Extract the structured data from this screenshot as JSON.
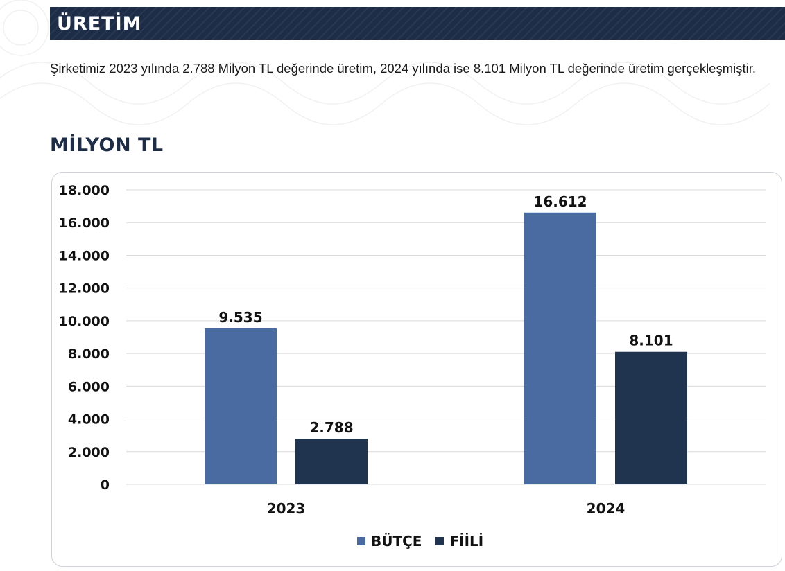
{
  "header": {
    "title": "ÜRETİM"
  },
  "intro": {
    "text": "Şirketimiz 2023 yılında 2.788 Milyon TL değerinde üretim, 2024 yılında ise 8.101 Milyon TL değerinde üretim gerçekleşmiştir."
  },
  "section": {
    "title": "MİLYON TL"
  },
  "colors": {
    "banner": "#1e2d47",
    "butce": "#4a6aa2",
    "fiili": "#21344f",
    "grid": "#d9d9d9"
  },
  "chart_data": {
    "type": "bar",
    "categories": [
      "2023",
      "2024"
    ],
    "series": [
      {
        "name": "BÜTÇE",
        "values": [
          9535,
          16612
        ],
        "labels": [
          "9.535",
          "16.612"
        ],
        "color": "#4a6aa2"
      },
      {
        "name": "FİİLİ",
        "values": [
          2788,
          8101
        ],
        "labels": [
          "2.788",
          "8.101"
        ],
        "color": "#21344f"
      }
    ],
    "yticks": [
      0,
      2000,
      4000,
      6000,
      8000,
      10000,
      12000,
      14000,
      16000,
      18000
    ],
    "ytick_labels": [
      "0",
      "2.000",
      "4.000",
      "6.000",
      "8.000",
      "10.000",
      "12.000",
      "14.000",
      "16.000",
      "18.000"
    ],
    "ylim": [
      0,
      18000
    ],
    "grid": true,
    "legend": "bottom-center"
  }
}
